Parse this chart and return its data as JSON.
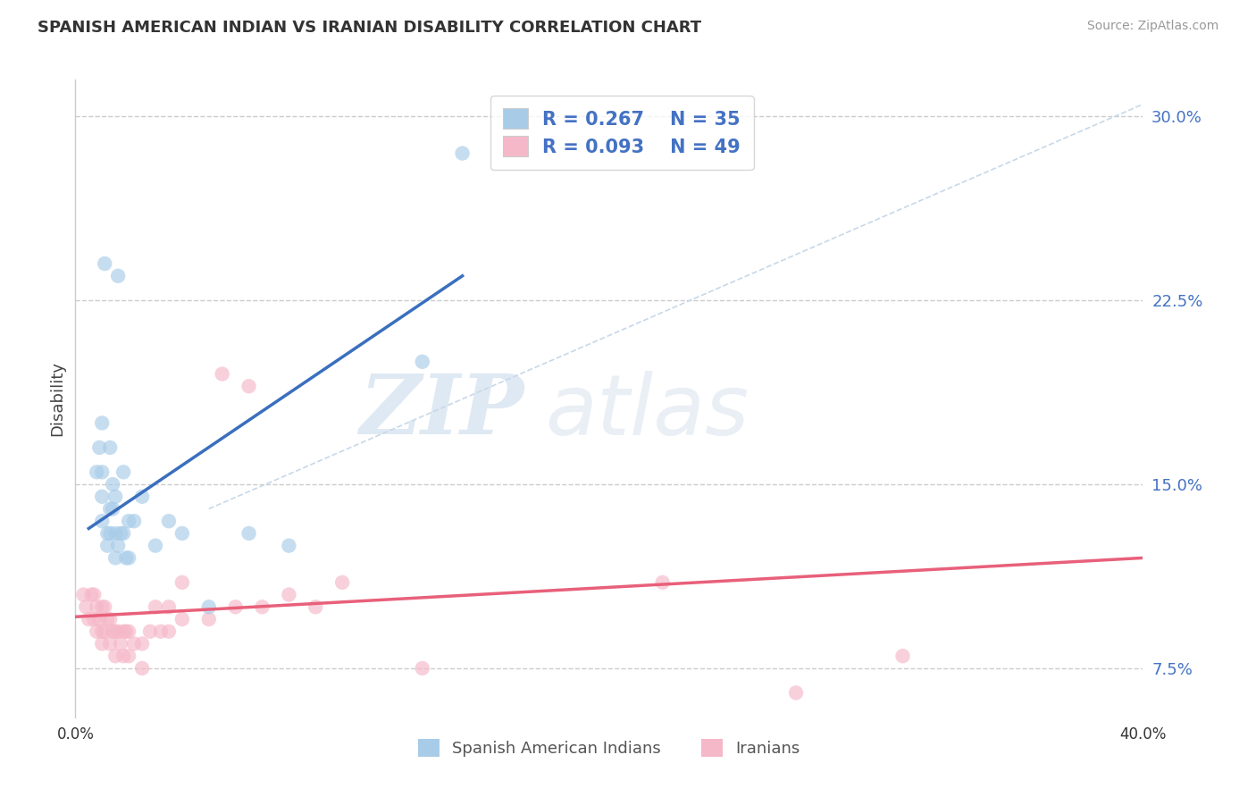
{
  "title": "SPANISH AMERICAN INDIAN VS IRANIAN DISABILITY CORRELATION CHART",
  "source": "Source: ZipAtlas.com",
  "ylabel": "Disability",
  "xlim": [
    0.0,
    0.4
  ],
  "ylim": [
    0.055,
    0.315
  ],
  "yticks": [
    0.075,
    0.15,
    0.225,
    0.3
  ],
  "ytick_labels": [
    "7.5%",
    "15.0%",
    "22.5%",
    "30.0%"
  ],
  "legend_r1": "R = 0.267",
  "legend_n1": "N = 35",
  "legend_r2": "R = 0.093",
  "legend_n2": "N = 49",
  "color_blue": "#a8cce8",
  "color_pink": "#f5b8c8",
  "color_blue_line": "#3a6fbe",
  "color_pink_line": "#e8607a",
  "color_diag": "#c8d8e8",
  "color_blue_text": "#4472c4",
  "watermark_zip": "ZIP",
  "watermark_atlas": "atlas",
  "blue_points_x": [
    0.008,
    0.009,
    0.01,
    0.01,
    0.01,
    0.01,
    0.011,
    0.012,
    0.012,
    0.013,
    0.013,
    0.013,
    0.014,
    0.014,
    0.015,
    0.015,
    0.015,
    0.016,
    0.016,
    0.017,
    0.018,
    0.018,
    0.019,
    0.02,
    0.02,
    0.022,
    0.025,
    0.03,
    0.035,
    0.04,
    0.05,
    0.065,
    0.08,
    0.13,
    0.145
  ],
  "blue_points_y": [
    0.155,
    0.165,
    0.135,
    0.145,
    0.155,
    0.175,
    0.24,
    0.125,
    0.13,
    0.13,
    0.14,
    0.165,
    0.14,
    0.15,
    0.12,
    0.13,
    0.145,
    0.125,
    0.235,
    0.13,
    0.13,
    0.155,
    0.12,
    0.12,
    0.135,
    0.135,
    0.145,
    0.125,
    0.135,
    0.13,
    0.1,
    0.13,
    0.125,
    0.2,
    0.285
  ],
  "pink_points_x": [
    0.003,
    0.004,
    0.005,
    0.006,
    0.007,
    0.007,
    0.008,
    0.008,
    0.009,
    0.01,
    0.01,
    0.01,
    0.011,
    0.011,
    0.012,
    0.013,
    0.013,
    0.014,
    0.015,
    0.015,
    0.016,
    0.017,
    0.018,
    0.018,
    0.019,
    0.02,
    0.02,
    0.022,
    0.025,
    0.025,
    0.028,
    0.03,
    0.032,
    0.035,
    0.035,
    0.04,
    0.04,
    0.05,
    0.055,
    0.06,
    0.065,
    0.07,
    0.08,
    0.09,
    0.1,
    0.13,
    0.22,
    0.27,
    0.31
  ],
  "pink_points_y": [
    0.105,
    0.1,
    0.095,
    0.105,
    0.095,
    0.105,
    0.09,
    0.1,
    0.095,
    0.085,
    0.09,
    0.1,
    0.09,
    0.1,
    0.095,
    0.085,
    0.095,
    0.09,
    0.08,
    0.09,
    0.09,
    0.085,
    0.08,
    0.09,
    0.09,
    0.08,
    0.09,
    0.085,
    0.075,
    0.085,
    0.09,
    0.1,
    0.09,
    0.09,
    0.1,
    0.095,
    0.11,
    0.095,
    0.195,
    0.1,
    0.19,
    0.1,
    0.105,
    0.1,
    0.11,
    0.075,
    0.11,
    0.065,
    0.08
  ],
  "blue_line_x": [
    0.005,
    0.145
  ],
  "blue_line_y": [
    0.132,
    0.235
  ],
  "pink_line_x": [
    0.0,
    0.4
  ],
  "pink_line_y": [
    0.096,
    0.12
  ],
  "diag_line_x": [
    0.05,
    0.4
  ],
  "diag_line_y": [
    0.14,
    0.305
  ]
}
